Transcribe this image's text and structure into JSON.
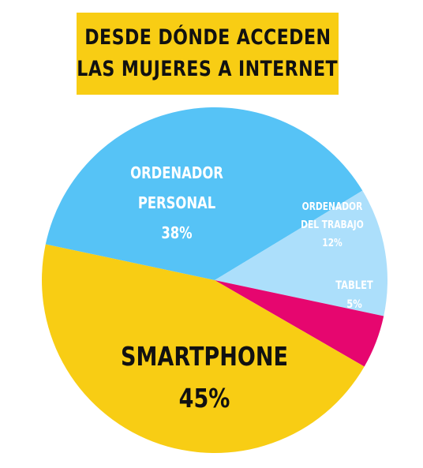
{
  "title": {
    "line1": "DESDE DÓNDE ACCEDEN",
    "line2": "LAS MUJERES A INTERNET"
  },
  "colors": {
    "title_bg": "#f8cd14",
    "smartphone": "#f8cd14",
    "ordenador_personal": "#56c3f6",
    "ordenador_trabajo": "#acdffb",
    "tablet": "#e6066f"
  },
  "chart_data": {
    "type": "pie",
    "title": "DESDE DÓNDE ACCEDEN LAS MUJERES A INTERNET",
    "slices": [
      {
        "key": "smartphone",
        "label_lines": [
          "SMARTPHONE"
        ],
        "value": 45,
        "value_label": "45%"
      },
      {
        "key": "ordenador_personal",
        "label_lines": [
          "ORDENADOR",
          "PERSONAL"
        ],
        "value": 38,
        "value_label": "38%"
      },
      {
        "key": "ordenador_trabajo",
        "label_lines": [
          "ORDENADOR",
          "DEL TRABAJO"
        ],
        "value": 12,
        "value_label": "12%"
      },
      {
        "key": "tablet",
        "label_lines": [
          "TABLET"
        ],
        "value": 5,
        "value_label": "5%"
      }
    ]
  }
}
